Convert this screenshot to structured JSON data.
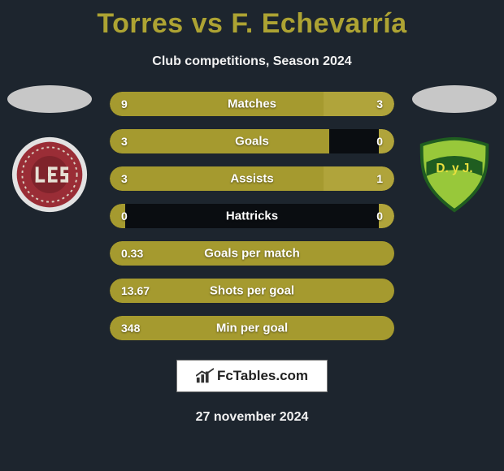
{
  "title": "Torres vs F. Echevarría",
  "subtitle": "Club competitions, Season 2024",
  "bar_track_color": "#0a0d11",
  "player_left": {
    "fill_color": "#a59a2f",
    "club_badge": {
      "outer_ring_color": "#e2e2e2",
      "main_color": "#9a2d36",
      "text_color": "#e6e0d4"
    }
  },
  "player_right": {
    "fill_color": "#b0a43b",
    "club_badge": {
      "shield_fill": "#98c83a",
      "shield_stroke": "#1f5d20",
      "band_color": "#1f5d20",
      "band_text_color": "#e8df3e"
    }
  },
  "stats": [
    {
      "label": "Matches",
      "left_val": "9",
      "right_val": "3",
      "left_pct": 75,
      "right_pct": 25
    },
    {
      "label": "Goals",
      "left_val": "3",
      "right_val": "0",
      "left_pct": 77,
      "right_pct": 5.5
    },
    {
      "label": "Assists",
      "left_val": "3",
      "right_val": "1",
      "left_pct": 75,
      "right_pct": 25
    },
    {
      "label": "Hattricks",
      "left_val": "0",
      "right_val": "0",
      "left_pct": 5.5,
      "right_pct": 5.5
    },
    {
      "label": "Goals per match",
      "left_val": "0.33",
      "right_val": "",
      "left_pct": 100,
      "right_pct": 0
    },
    {
      "label": "Shots per goal",
      "left_val": "13.67",
      "right_val": "",
      "left_pct": 100,
      "right_pct": 0
    },
    {
      "label": "Min per goal",
      "left_val": "348",
      "right_val": "",
      "left_pct": 100,
      "right_pct": 0
    }
  ],
  "footer_brand": "FcTables.com",
  "footer_date": "27 november 2024"
}
